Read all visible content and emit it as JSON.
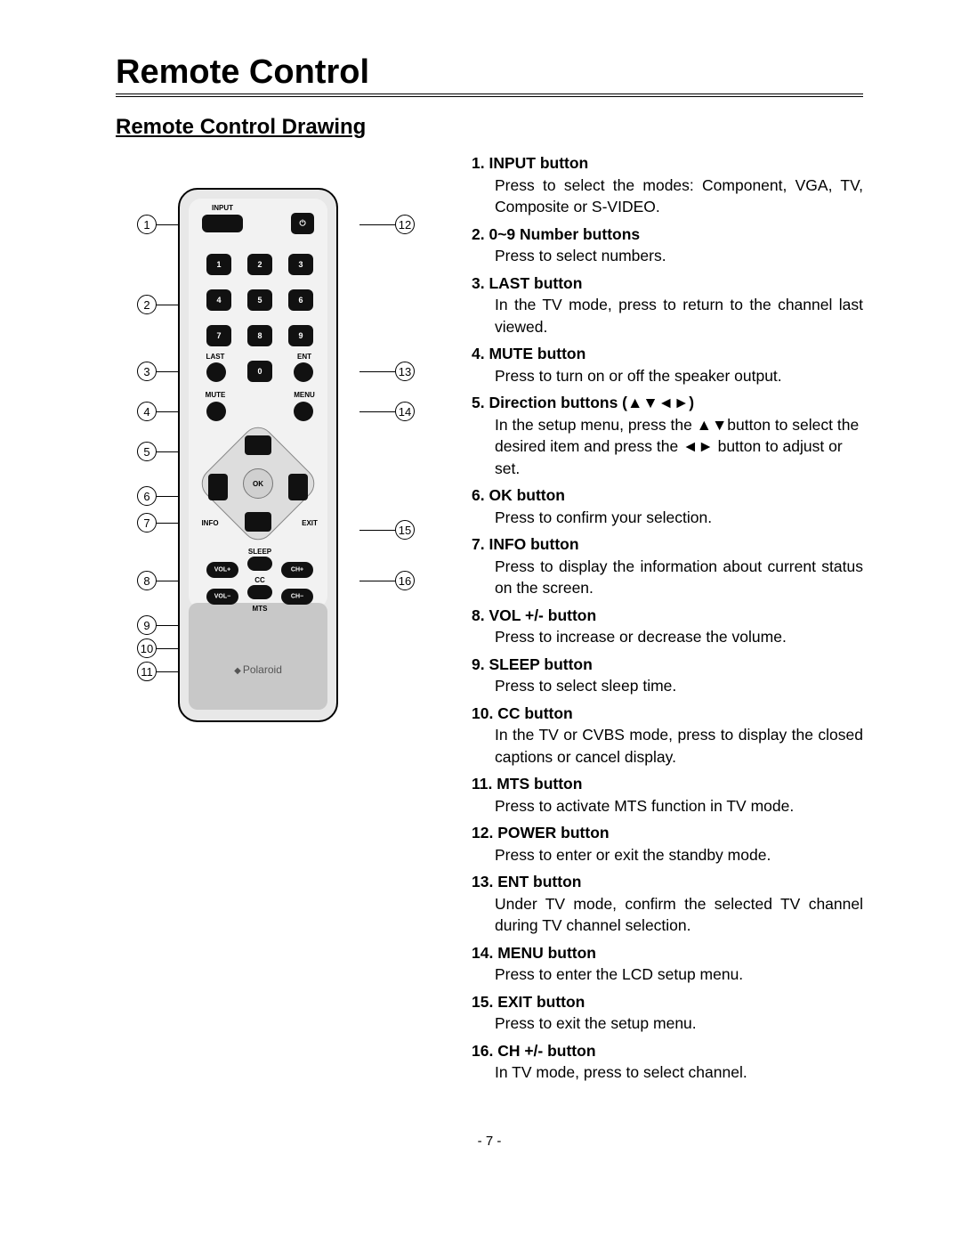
{
  "page": {
    "title": "Remote Control",
    "subtitle": "Remote Control Drawing",
    "page_number": "- 7 -"
  },
  "remote": {
    "brand": "Polaroid",
    "top_label": "INPUT",
    "labels": {
      "last": "LAST",
      "ent": "ENT",
      "mute": "MUTE",
      "menu": "MENU",
      "info": "INFO",
      "exit": "EXIT",
      "sleep": "SLEEP",
      "cc": "CC",
      "mts": "MTS",
      "volp": "VOL+",
      "volm": "VOL−",
      "chp": "CH+",
      "chm": "CH−",
      "ok": "OK"
    },
    "numbers": [
      "1",
      "2",
      "3",
      "4",
      "5",
      "6",
      "7",
      "8",
      "9",
      "0"
    ],
    "callouts_left": [
      "1",
      "2",
      "3",
      "4",
      "5",
      "6",
      "7",
      "8",
      "9",
      "10",
      "11"
    ],
    "callouts_right": [
      "12",
      "13",
      "14",
      "15",
      "16"
    ]
  },
  "descriptions": [
    {
      "num": "1.",
      "label": "INPUT button",
      "desc": "Press to select the modes: Component, VGA, TV, Composite or S-VIDEO.",
      "justify": true
    },
    {
      "num": "2.",
      "label": "0~9 Number buttons",
      "desc": "Press to select numbers."
    },
    {
      "num": "3.",
      "label": "LAST button",
      "desc": "In the TV mode, press to return to the channel last viewed.",
      "justify": true
    },
    {
      "num": "4.",
      "label": "MUTE button",
      "desc": "Press to turn on or off the speaker output."
    },
    {
      "num": "5.",
      "label": "Direction buttons (▲▼◄►)",
      "desc": "In the setup menu, press the ▲▼button to select the desired item and press the ◄► button to adjust or set."
    },
    {
      "num": "6.",
      "label": "OK button",
      "desc": "Press to confirm your selection."
    },
    {
      "num": "7.",
      "label": "INFO button",
      "desc": "Press to display the information about current status on the screen.",
      "justify": true
    },
    {
      "num": "8.",
      "label": "VOL +/- button",
      "desc": "Press to increase or decrease the volume."
    },
    {
      "num": "9.",
      "label": "SLEEP button",
      "desc": "Press to select sleep time."
    },
    {
      "num": "10.",
      "label": "CC button",
      "desc": "In the TV or CVBS mode, press to display the closed captions or cancel display.",
      "justify": true
    },
    {
      "num": "11.",
      "label": "MTS button",
      "desc": "Press to activate MTS function in TV mode."
    },
    {
      "num": "12.",
      "label": "POWER button",
      "desc": "Press to enter or exit the standby mode."
    },
    {
      "num": "13.",
      "label": "ENT button",
      "desc": "Under TV mode, confirm the selected TV channel during TV channel selection.",
      "justify": true
    },
    {
      "num": "14.",
      "label": "MENU button",
      "desc": "Press to enter the LCD setup menu."
    },
    {
      "num": "15.",
      "label": "EXIT button",
      "desc": "Press to exit the setup menu."
    },
    {
      "num": "16.",
      "label": "CH +/- button",
      "desc": "In TV mode, press to select channel."
    }
  ]
}
